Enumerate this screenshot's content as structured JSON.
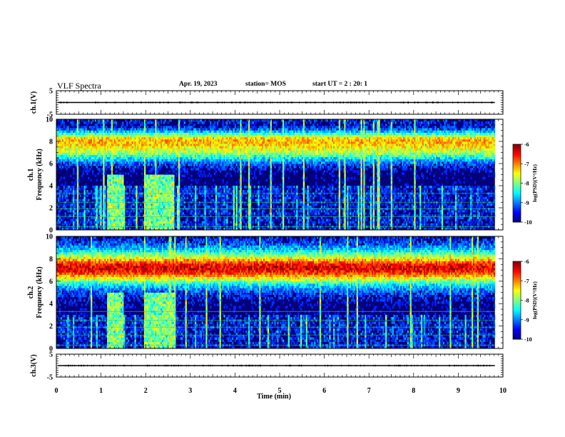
{
  "header": {
    "title": "VLF Spectra",
    "date": "Apr. 19, 2023",
    "station": "station= MOS",
    "start": "start UT =  2 : 20: 1"
  },
  "chart_data": {
    "type": "heatmap",
    "xlabel": "Time (min)",
    "xlim": [
      0,
      10
    ],
    "xticks": [
      "0",
      "1",
      "2",
      "3",
      "4",
      "5",
      "6",
      "7",
      "8",
      "9",
      "10"
    ],
    "panels": [
      {
        "label": "ch.1(V)",
        "kind": "waveform",
        "ylim": [
          -5,
          5
        ],
        "yticks": [
          "5",
          "-5"
        ],
        "baseline": 0
      },
      {
        "label": "ch.1 Frequency (kHz)",
        "kind": "spectrogram",
        "ylim": [
          0,
          10
        ],
        "yticks": [
          "0",
          "2",
          "4",
          "6",
          "8",
          "10"
        ],
        "colorbar": {
          "label": "log(PSD)(V²/Hz)",
          "range": [
            -10,
            -6
          ],
          "ticks": [
            "-6",
            "-7",
            "-8",
            "-9",
            "-10"
          ]
        }
      },
      {
        "label": "ch.2 Frequency (kHz)",
        "kind": "spectrogram",
        "ylim": [
          0,
          10
        ],
        "yticks": [
          "0",
          "2",
          "4",
          "6",
          "8",
          "10"
        ],
        "colorbar": {
          "label": "log(PSD)(V²/Hz)",
          "range": [
            -10,
            -6
          ],
          "ticks": [
            "-6",
            "-7",
            "-8",
            "-9",
            "-10"
          ]
        }
      },
      {
        "label": "ch.3(V)",
        "kind": "waveform",
        "ylim": [
          -5,
          5
        ],
        "yticks": [
          "5",
          "-5"
        ],
        "baseline": 0
      }
    ],
    "bands": {
      "ch1_main_emission_khz": [
        5.8,
        9.2
      ],
      "ch2_main_emission_khz": [
        4.8,
        9.6
      ],
      "broadband_bursts_min": [
        [
          1.15,
          1.5
        ],
        [
          1.95,
          2.65
        ]
      ]
    },
    "record_length_min": 9.82
  }
}
